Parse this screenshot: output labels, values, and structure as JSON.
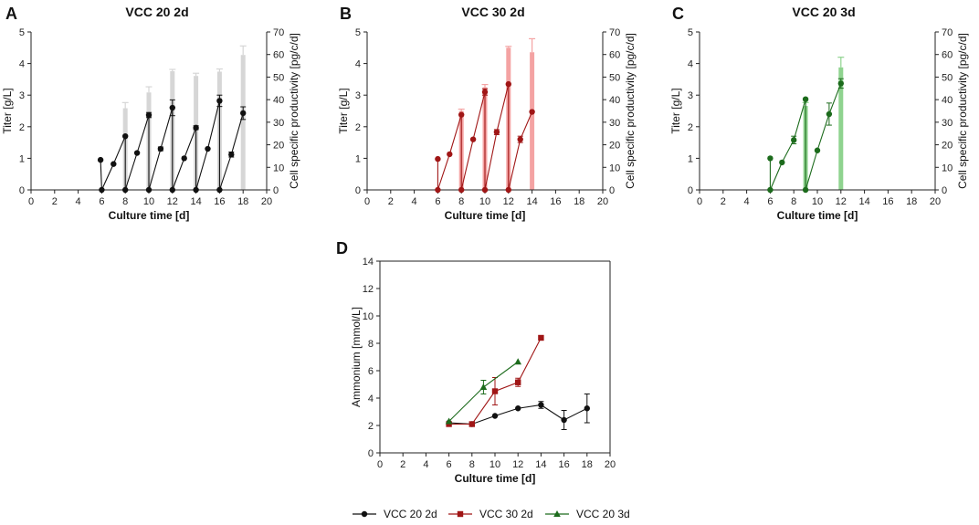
{
  "chart_data": [
    {
      "id": "A",
      "type": "bar+line",
      "panel_letter": "A",
      "title": "VCC 20 2d",
      "xlabel": "Culture time [d]",
      "ylabel": "Titer [g/L]",
      "y2label": "Cell specific productivity [pg/c/d]",
      "xlim": [
        0,
        20
      ],
      "ylim": [
        0,
        5
      ],
      "y2lim": [
        0,
        70
      ],
      "xticks": [
        "0",
        "2",
        "4",
        "6",
        "8",
        "10",
        "12",
        "14",
        "16",
        "18",
        "20"
      ],
      "yticks": [
        "0",
        "1",
        "2",
        "3",
        "4",
        "5"
      ],
      "y2ticks": [
        "0",
        "10",
        "20",
        "30",
        "40",
        "50",
        "60",
        "70"
      ],
      "color": "#111111",
      "bar_color": "#d6d6d6",
      "bars": [
        {
          "x": 8,
          "value": 36.2,
          "err": 2.5
        },
        {
          "x": 10,
          "value": 43.2,
          "err": 2.5
        },
        {
          "x": 12,
          "value": 52.6,
          "err": 0.8
        },
        {
          "x": 14,
          "value": 50.5,
          "err": 1.2
        },
        {
          "x": 16,
          "value": 52.4,
          "err": 1.2
        },
        {
          "x": 18,
          "value": 59.8,
          "err": 4.0
        }
      ],
      "segments": [
        [
          {
            "x": 5.9,
            "y": 0.95
          },
          {
            "x": 6,
            "y": 0
          }
        ],
        [
          {
            "x": 6,
            "y": 0
          },
          {
            "x": 7,
            "y": 0.82
          },
          {
            "x": 8,
            "y": 1.7
          }
        ],
        [
          {
            "x": 8,
            "y": 1.7
          },
          {
            "x": 8,
            "y": 0
          }
        ],
        [
          {
            "x": 8,
            "y": 0
          },
          {
            "x": 9,
            "y": 1.17
          },
          {
            "x": 10,
            "y": 2.37
          }
        ],
        [
          {
            "x": 10,
            "y": 2.37
          },
          {
            "x": 10,
            "y": 0
          }
        ],
        [
          {
            "x": 10,
            "y": 0
          },
          {
            "x": 11,
            "y": 1.3
          },
          {
            "x": 12,
            "y": 2.6
          }
        ],
        [
          {
            "x": 12,
            "y": 2.6
          },
          {
            "x": 12,
            "y": 0
          }
        ],
        [
          {
            "x": 12,
            "y": 0
          },
          {
            "x": 13,
            "y": 1.0
          },
          {
            "x": 14,
            "y": 1.97
          }
        ],
        [
          {
            "x": 14,
            "y": 1.97
          },
          {
            "x": 14,
            "y": 0
          }
        ],
        [
          {
            "x": 14,
            "y": 0
          },
          {
            "x": 15,
            "y": 1.3
          },
          {
            "x": 16,
            "y": 2.82
          }
        ],
        [
          {
            "x": 16,
            "y": 2.82
          },
          {
            "x": 16,
            "y": 0
          }
        ],
        [
          {
            "x": 16,
            "y": 0
          },
          {
            "x": 17,
            "y": 1.12
          },
          {
            "x": 18,
            "y": 2.43
          }
        ]
      ],
      "points": [
        {
          "x": 5.9,
          "y": 0.95,
          "err": 0
        },
        {
          "x": 6,
          "y": 0,
          "err": 0
        },
        {
          "x": 7,
          "y": 0.82,
          "err": 0
        },
        {
          "x": 8,
          "y": 1.7,
          "err": 0
        },
        {
          "x": 8,
          "y": 0,
          "err": 0
        },
        {
          "x": 9,
          "y": 1.17,
          "err": 0
        },
        {
          "x": 10,
          "y": 2.37,
          "err": 0.08
        },
        {
          "x": 10,
          "y": 0,
          "err": 0
        },
        {
          "x": 11,
          "y": 1.3,
          "err": 0.06
        },
        {
          "x": 12,
          "y": 2.6,
          "err": 0.25
        },
        {
          "x": 12,
          "y": 0,
          "err": 0
        },
        {
          "x": 13,
          "y": 1.0,
          "err": 0
        },
        {
          "x": 14,
          "y": 1.97,
          "err": 0.06
        },
        {
          "x": 14,
          "y": 0,
          "err": 0
        },
        {
          "x": 15,
          "y": 1.3,
          "err": 0
        },
        {
          "x": 16,
          "y": 2.82,
          "err": 0.18
        },
        {
          "x": 16,
          "y": 0,
          "err": 0
        },
        {
          "x": 17,
          "y": 1.12,
          "err": 0.08
        },
        {
          "x": 18,
          "y": 2.43,
          "err": 0.2
        }
      ]
    },
    {
      "id": "B",
      "type": "bar+line",
      "panel_letter": "B",
      "title": "VCC 30 2d",
      "xlabel": "Culture time [d]",
      "ylabel": "Titer [g/L]",
      "y2label": "Cell specific productivity [pg/c/d]",
      "xlim": [
        0,
        20
      ],
      "ylim": [
        0,
        5
      ],
      "y2lim": [
        0,
        70
      ],
      "xticks": [
        "0",
        "2",
        "4",
        "6",
        "8",
        "10",
        "12",
        "14",
        "16",
        "18",
        "20"
      ],
      "yticks": [
        "0",
        "1",
        "2",
        "3",
        "4",
        "5"
      ],
      "y2ticks": [
        "0",
        "10",
        "20",
        "30",
        "40",
        "50",
        "60",
        "70"
      ],
      "color": "#a01616",
      "bar_color": "#f4a3a3",
      "bars": [
        {
          "x": 8,
          "value": 35.0,
          "err": 0.8
        },
        {
          "x": 10,
          "value": 45.5,
          "err": 1.2
        },
        {
          "x": 12,
          "value": 63.0,
          "err": 0.6
        },
        {
          "x": 14,
          "value": 61.0,
          "err": 6.0
        }
      ],
      "segments": [
        [
          {
            "x": 6,
            "y": 0.98
          },
          {
            "x": 6,
            "y": 0
          }
        ],
        [
          {
            "x": 6,
            "y": 0
          },
          {
            "x": 7,
            "y": 1.13
          },
          {
            "x": 8,
            "y": 2.38
          }
        ],
        [
          {
            "x": 8,
            "y": 2.38
          },
          {
            "x": 8,
            "y": 0
          }
        ],
        [
          {
            "x": 8,
            "y": 0
          },
          {
            "x": 9,
            "y": 1.6
          },
          {
            "x": 10,
            "y": 3.1
          }
        ],
        [
          {
            "x": 10,
            "y": 3.1
          },
          {
            "x": 10,
            "y": 0
          }
        ],
        [
          {
            "x": 10,
            "y": 0
          },
          {
            "x": 11,
            "y": 1.83
          },
          {
            "x": 12,
            "y": 3.35
          }
        ],
        [
          {
            "x": 12,
            "y": 3.35
          },
          {
            "x": 12,
            "y": 0
          }
        ],
        [
          {
            "x": 12,
            "y": 0
          },
          {
            "x": 13,
            "y": 1.6
          },
          {
            "x": 14,
            "y": 2.47
          }
        ]
      ],
      "points": [
        {
          "x": 6,
          "y": 0.98,
          "err": 0
        },
        {
          "x": 6,
          "y": 0,
          "err": 0
        },
        {
          "x": 7,
          "y": 1.13,
          "err": 0
        },
        {
          "x": 8,
          "y": 2.38,
          "err": 0
        },
        {
          "x": 8,
          "y": 0,
          "err": 0
        },
        {
          "x": 9,
          "y": 1.6,
          "err": 0
        },
        {
          "x": 10,
          "y": 3.1,
          "err": 0.1
        },
        {
          "x": 10,
          "y": 0,
          "err": 0
        },
        {
          "x": 11,
          "y": 1.83,
          "err": 0.08
        },
        {
          "x": 12,
          "y": 3.35,
          "err": 0
        },
        {
          "x": 12,
          "y": 0,
          "err": 0
        },
        {
          "x": 13,
          "y": 1.6,
          "err": 0.1
        },
        {
          "x": 14,
          "y": 2.47,
          "err": 0
        }
      ]
    },
    {
      "id": "C",
      "type": "bar+line",
      "panel_letter": "C",
      "title": "VCC 20 3d",
      "xlabel": "Culture time [d]",
      "ylabel": "Titer [g/L]",
      "y2label": "Cell specific productivity [pg/c/d]",
      "xlim": [
        0,
        20
      ],
      "ylim": [
        0,
        5
      ],
      "y2lim": [
        0,
        70
      ],
      "xticks": [
        "0",
        "2",
        "4",
        "6",
        "8",
        "10",
        "12",
        "14",
        "16",
        "18",
        "20"
      ],
      "yticks": [
        "0",
        "1",
        "2",
        "3",
        "4",
        "5"
      ],
      "y2ticks": [
        "0",
        "10",
        "20",
        "30",
        "40",
        "50",
        "60",
        "70"
      ],
      "color": "#1c6b1c",
      "bar_color": "#8fd38f",
      "bars": [
        {
          "x": 9,
          "value": 37.2,
          "err": 1.5
        },
        {
          "x": 12,
          "value": 54.3,
          "err": 4.5
        }
      ],
      "segments": [
        [
          {
            "x": 6,
            "y": 1.0
          },
          {
            "x": 6,
            "y": 0
          }
        ],
        [
          {
            "x": 6,
            "y": 0
          },
          {
            "x": 7,
            "y": 0.87
          },
          {
            "x": 8,
            "y": 1.58
          },
          {
            "x": 9,
            "y": 2.87
          }
        ],
        [
          {
            "x": 9,
            "y": 2.87
          },
          {
            "x": 9,
            "y": 0
          }
        ],
        [
          {
            "x": 9,
            "y": 0
          },
          {
            "x": 10,
            "y": 1.25
          },
          {
            "x": 11,
            "y": 2.4
          },
          {
            "x": 12,
            "y": 3.37
          }
        ]
      ],
      "points": [
        {
          "x": 6,
          "y": 1.0,
          "err": 0
        },
        {
          "x": 6,
          "y": 0,
          "err": 0
        },
        {
          "x": 7,
          "y": 0.87,
          "err": 0
        },
        {
          "x": 8,
          "y": 1.58,
          "err": 0.12
        },
        {
          "x": 9,
          "y": 2.87,
          "err": 0
        },
        {
          "x": 9,
          "y": 0,
          "err": 0
        },
        {
          "x": 10,
          "y": 1.25,
          "err": 0
        },
        {
          "x": 11,
          "y": 2.4,
          "err": 0.35
        },
        {
          "x": 12,
          "y": 3.37,
          "err": 0.15
        }
      ]
    },
    {
      "id": "D",
      "type": "line",
      "panel_letter": "D",
      "title": "",
      "xlabel": "Culture time [d]",
      "ylabel": "Ammonium [mmol/L]",
      "xlim": [
        0,
        20
      ],
      "ylim": [
        0,
        14
      ],
      "xticks": [
        "0",
        "2",
        "4",
        "6",
        "8",
        "10",
        "12",
        "14",
        "16",
        "18",
        "20"
      ],
      "yticks": [
        "0",
        "2",
        "4",
        "6",
        "8",
        "10",
        "12",
        "14"
      ],
      "series": [
        {
          "name": "VCC 20 2d",
          "color": "#111111",
          "marker": "circle",
          "points": [
            {
              "x": 6,
              "y": 2.2,
              "err": 0
            },
            {
              "x": 8,
              "y": 2.1,
              "err": 0
            },
            {
              "x": 10,
              "y": 2.7,
              "err": 0
            },
            {
              "x": 12,
              "y": 3.25,
              "err": 0
            },
            {
              "x": 14,
              "y": 3.5,
              "err": 0.25
            },
            {
              "x": 16,
              "y": 2.4,
              "err": 0.7
            },
            {
              "x": 18,
              "y": 3.25,
              "err": 1.05
            }
          ]
        },
        {
          "name": "VCC 30 2d",
          "color": "#a01616",
          "marker": "square",
          "points": [
            {
              "x": 6,
              "y": 2.1,
              "err": 0
            },
            {
              "x": 8,
              "y": 2.1,
              "err": 0
            },
            {
              "x": 10,
              "y": 4.5,
              "err": 1.0
            },
            {
              "x": 12,
              "y": 5.15,
              "err": 0.3
            },
            {
              "x": 14,
              "y": 8.4,
              "err": 0
            }
          ]
        },
        {
          "name": "VCC 20 3d",
          "color": "#1c6b1c",
          "marker": "triangle",
          "points": [
            {
              "x": 6,
              "y": 2.3,
              "err": 0
            },
            {
              "x": 9,
              "y": 4.8,
              "err": 0.5
            },
            {
              "x": 12,
              "y": 6.65,
              "err": 0
            }
          ]
        }
      ]
    }
  ],
  "legend": [
    {
      "label": "VCC 20 2d",
      "color": "#111111",
      "marker": "circle"
    },
    {
      "label": "VCC 30 2d",
      "color": "#a01616",
      "marker": "square"
    },
    {
      "label": "VCC 20 3d",
      "color": "#1c6b1c",
      "marker": "triangle"
    }
  ]
}
